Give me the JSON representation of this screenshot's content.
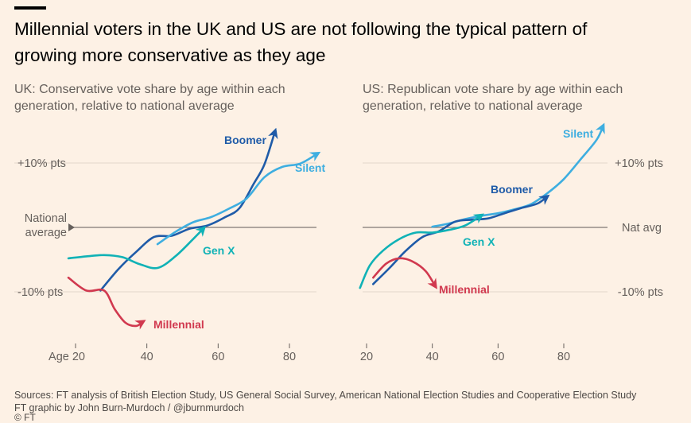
{
  "header": {
    "title": "Millennial voters in the UK and US are not following the typical pattern of growing more conservative as they age"
  },
  "footer": {
    "sources": "Sources: FT analysis of British Election Study, US General Social Survey, American National Election Studies and Cooperative Election Study",
    "credit": "FT graphic by John Burn-Murdoch / @jburnmurdoch",
    "logo": "© FT"
  },
  "colors": {
    "background": "#fdf1e5",
    "boomer": "#1f5ba8",
    "silent": "#3eaee0",
    "genx": "#10b2b6",
    "millennial": "#d1394f",
    "axis": "#66605c",
    "grid": "#e5dbd0"
  },
  "chart_data": [
    {
      "type": "line",
      "title": "UK: Conservative vote share by age within each generation, relative to national average",
      "xlabel": "Age",
      "ylabel": "",
      "xlim": [
        18,
        88
      ],
      "ylim": [
        -15,
        15
      ],
      "x_ticks": [
        20,
        40,
        60,
        80
      ],
      "x_tick_labels": [
        "Age 20",
        "40",
        "60",
        "80"
      ],
      "y_ticks": [
        10,
        0,
        -10
      ],
      "y_tick_labels": [
        "+10% pts",
        "National average",
        "-10% pts"
      ],
      "grid": true,
      "series": [
        {
          "name": "Boomer",
          "color": "#1f5ba8",
          "x": [
            27,
            32,
            37,
            42,
            47,
            52,
            57,
            62,
            66,
            70,
            73,
            76
          ],
          "y": [
            -9.8,
            -6.5,
            -3.8,
            -1.5,
            -1.3,
            -0.2,
            0.3,
            1.6,
            3,
            6.8,
            9.8,
            15
          ]
        },
        {
          "name": "Silent",
          "color": "#3eaee0",
          "x": [
            43,
            48,
            53,
            58,
            63,
            68,
            73,
            78,
            83,
            88
          ],
          "y": [
            -2.6,
            -0.7,
            0.8,
            1.6,
            2.9,
            4.5,
            7.8,
            9.4,
            9.9,
            11.5
          ]
        },
        {
          "name": "Gen X",
          "color": "#10b2b6",
          "x": [
            18,
            23,
            28,
            33,
            38,
            43,
            48,
            53,
            56
          ],
          "y": [
            -4.8,
            -4.5,
            -4.3,
            -4.6,
            -5.7,
            -6.3,
            -4.5,
            -1.8,
            -0.1
          ]
        },
        {
          "name": "Millennial",
          "color": "#d1394f",
          "x": [
            18,
            23,
            28,
            31,
            34,
            37,
            39
          ],
          "y": [
            -7.8,
            -9.8,
            -9.8,
            -12.7,
            -14.8,
            -15.3,
            -14.6
          ]
        }
      ],
      "annotations": [
        "Boomer",
        "Silent",
        "Gen X",
        "Millennial"
      ]
    },
    {
      "type": "line",
      "title": "US: Republican vote share by age within each generation, relative to national average",
      "xlabel": "",
      "ylabel": "",
      "xlim": [
        18,
        92
      ],
      "ylim": [
        -10,
        16
      ],
      "x_ticks": [
        20,
        40,
        60,
        80
      ],
      "x_tick_labels": [
        "20",
        "40",
        "60",
        "80"
      ],
      "y_ticks": [
        10,
        0,
        -10
      ],
      "y_tick_labels": [
        "+10% pts",
        "Nat avg",
        "-10% pts"
      ],
      "grid": true,
      "series": [
        {
          "name": "Silent",
          "color": "#3eaee0",
          "x": [
            40,
            45,
            50,
            55,
            60,
            65,
            70,
            75,
            80,
            85,
            90,
            92
          ],
          "y": [
            0.1,
            0.6,
            1.3,
            1.8,
            2.2,
            2.8,
            3.6,
            5.3,
            7.5,
            10.5,
            13.6,
            15.8
          ]
        },
        {
          "name": "Boomer",
          "color": "#1f5ba8",
          "x": [
            22,
            27,
            32,
            37,
            42,
            47,
            52,
            57,
            62,
            67,
            72,
            75
          ],
          "y": [
            -8.8,
            -6.3,
            -3.6,
            -1.5,
            -0.6,
            0.9,
            1.2,
            1.4,
            2.2,
            3,
            3.7,
            4.8
          ]
        },
        {
          "name": "Gen X",
          "color": "#10b2b6",
          "x": [
            18,
            21,
            25,
            30,
            35,
            40,
            45,
            50,
            55
          ],
          "y": [
            -9.4,
            -5.9,
            -3.6,
            -1.8,
            -0.8,
            -0.8,
            -0.4,
            0.3,
            1.9
          ]
        },
        {
          "name": "Millennial",
          "color": "#d1394f",
          "x": [
            22,
            26,
            30,
            34,
            38,
            41
          ],
          "y": [
            -7.8,
            -5.6,
            -4.8,
            -5.3,
            -6.8,
            -9.2
          ]
        }
      ],
      "annotations": [
        "Silent",
        "Boomer",
        "Gen X",
        "Millennial"
      ]
    }
  ]
}
